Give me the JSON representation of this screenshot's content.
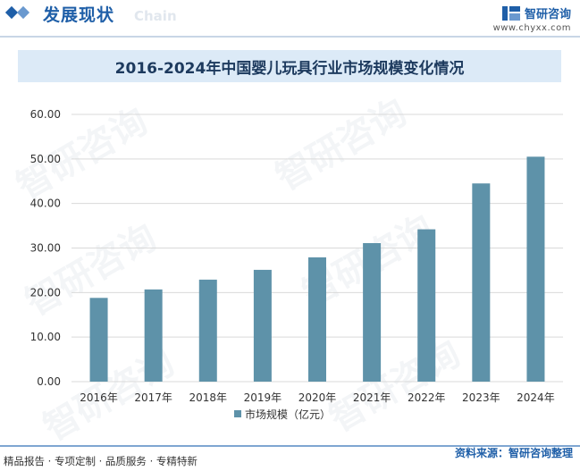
{
  "header": {
    "title": "发展现状",
    "ghost": "Chain",
    "brand_name": "智研咨询",
    "brand_url": "www.chyxx.com"
  },
  "watermark": "智研咨询",
  "chart_data": {
    "type": "bar",
    "title": "2016-2024年中国婴儿玩具行业市场规模变化情况",
    "categories": [
      "2016年",
      "2017年",
      "2018年",
      "2019年",
      "2020年",
      "2021年",
      "2022年",
      "2023年",
      "2024年"
    ],
    "series": [
      {
        "name": "市场规模（亿元）",
        "values": [
          18.8,
          20.7,
          22.9,
          25.1,
          27.9,
          31.1,
          34.2,
          44.5,
          50.5
        ],
        "color": "#5e92a9"
      }
    ],
    "yticks": [
      "0.00",
      "10.00",
      "20.00",
      "30.00",
      "40.00",
      "50.00",
      "60.00"
    ],
    "ylim": [
      0,
      60
    ],
    "xlabel": "",
    "ylabel": "",
    "grid": true,
    "legend": "bottom-center"
  },
  "footer": {
    "left": "精品报告 · 专项定制 · 品质服务 · 专精特新",
    "right": "资料来源：智研咨询整理"
  }
}
